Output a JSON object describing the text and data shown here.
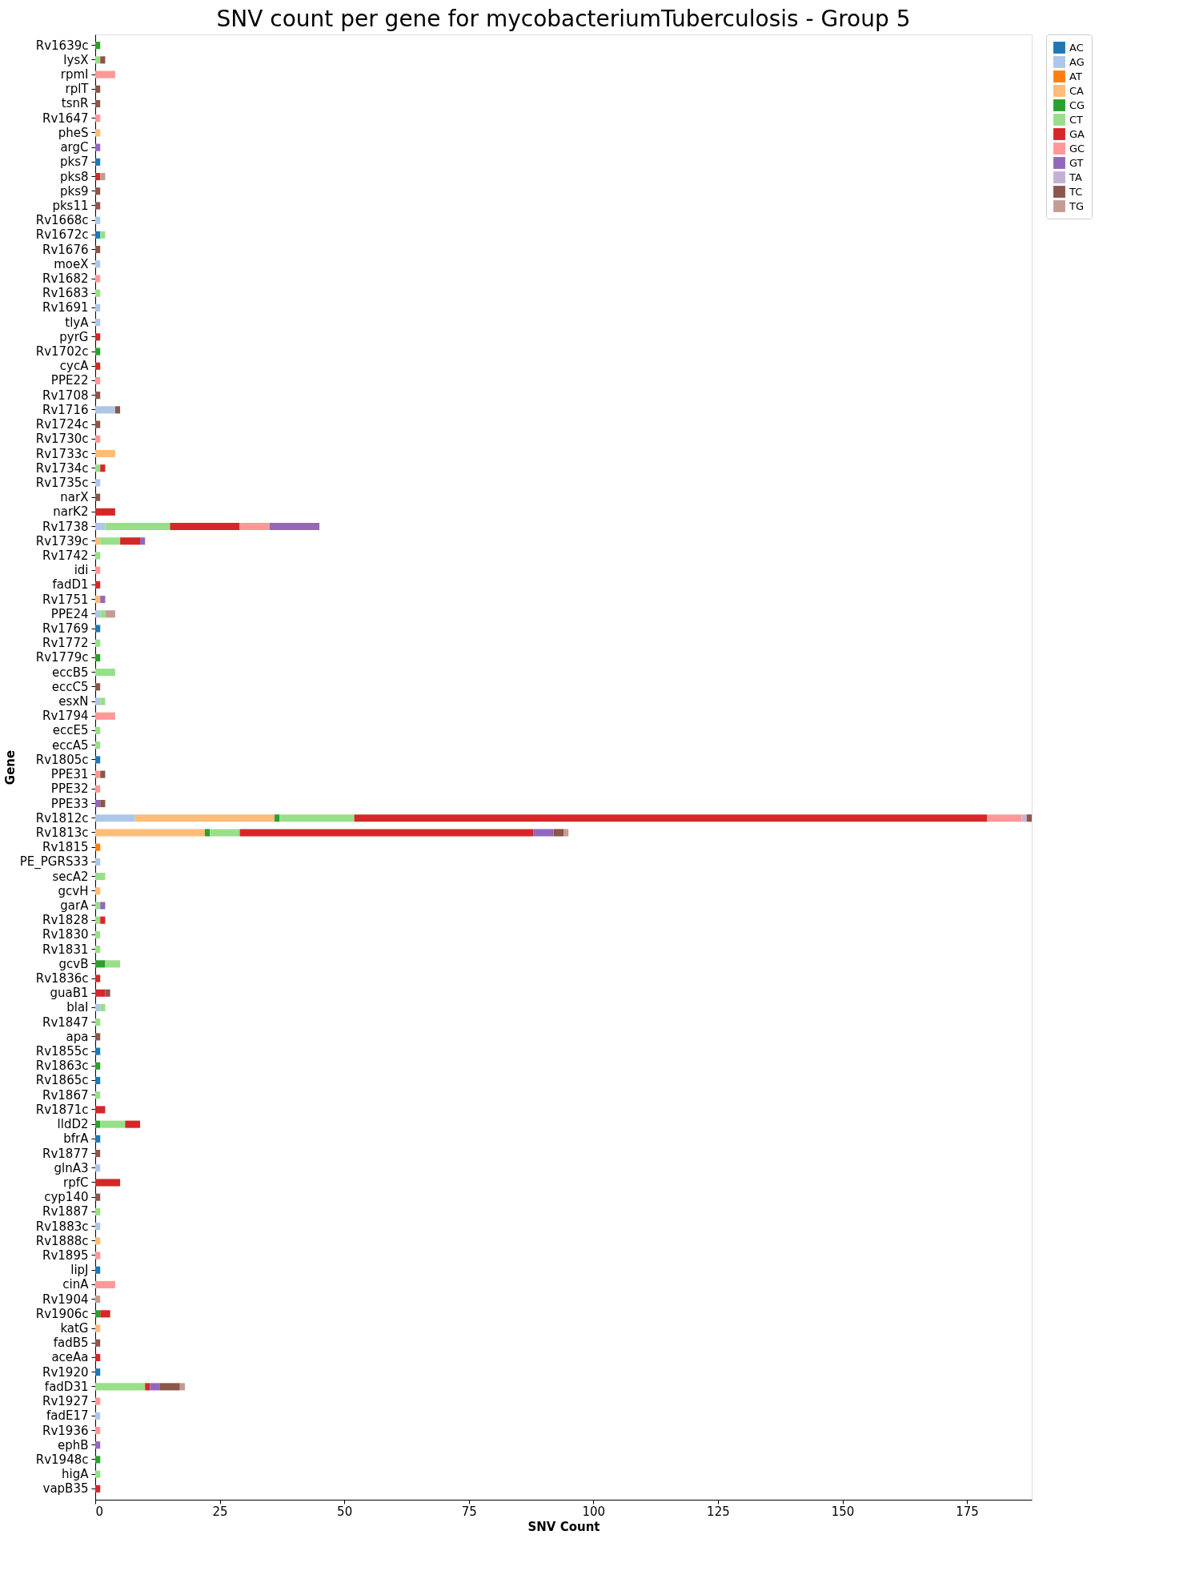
{
  "chart_data": {
    "type": "bar",
    "orientation": "horizontal",
    "stacked": true,
    "title": "SNV count per gene for mycobacteriumTuberculosis - Group 5",
    "xlabel": "SNV Count",
    "ylabel": "Gene",
    "xlim": [
      0,
      188
    ],
    "xticks": [
      0,
      25,
      50,
      75,
      100,
      125,
      150,
      175
    ],
    "grid": false,
    "legend": "top right",
    "categories": [
      "Rv1639c",
      "lysX",
      "rpmI",
      "rplT",
      "tsnR",
      "Rv1647",
      "pheS",
      "argC",
      "pks7",
      "pks8",
      "pks9",
      "pks11",
      "Rv1668c",
      "Rv1672c",
      "Rv1676",
      "moeX",
      "Rv1682",
      "Rv1683",
      "Rv1691",
      "tlyA",
      "pyrG",
      "Rv1702c",
      "cycA",
      "PPE22",
      "Rv1708",
      "Rv1716",
      "Rv1724c",
      "Rv1730c",
      "Rv1733c",
      "Rv1734c",
      "Rv1735c",
      "narX",
      "narK2",
      "Rv1738",
      "Rv1739c",
      "Rv1742",
      "idi",
      "fadD1",
      "Rv1751",
      "PPE24",
      "Rv1769",
      "Rv1772",
      "Rv1779c",
      "eccB5",
      "eccC5",
      "esxN",
      "Rv1794",
      "eccE5",
      "eccA5",
      "Rv1805c",
      "PPE31",
      "PPE32",
      "PPE33",
      "Rv1812c",
      "Rv1813c",
      "Rv1815",
      "PE_PGRS33",
      "secA2",
      "gcvH",
      "garA",
      "Rv1828",
      "Rv1830",
      "Rv1831",
      "gcvB",
      "Rv1836c",
      "guaB1",
      "blaI",
      "Rv1847",
      "apa",
      "Rv1855c",
      "Rv1863c",
      "Rv1865c",
      "Rv1867",
      "Rv1871c",
      "lldD2",
      "bfrA",
      "Rv1877",
      "glnA3",
      "rpfC",
      "cyp140",
      "Rv1887",
      "Rv1883c",
      "Rv1888c",
      "Rv1895",
      "lipJ",
      "cinA",
      "Rv1904",
      "Rv1906c",
      "katG",
      "fadB5",
      "aceAa",
      "Rv1920",
      "fadD31",
      "Rv1927",
      "fadE17",
      "Rv1936",
      "ephB",
      "Rv1948c",
      "higA",
      "vapB35"
    ],
    "series": [
      {
        "name": "AC",
        "color": "#1f77b4",
        "values": [
          null,
          null,
          null,
          null,
          null,
          null,
          null,
          null,
          1,
          null,
          null,
          null,
          null,
          1,
          null,
          null,
          null,
          null,
          null,
          null,
          null,
          null,
          null,
          null,
          null,
          null,
          null,
          null,
          null,
          null,
          null,
          null,
          null,
          null,
          null,
          null,
          null,
          null,
          null,
          null,
          1,
          null,
          null,
          null,
          null,
          null,
          null,
          null,
          null,
          1,
          null,
          null,
          null,
          null,
          null,
          null,
          null,
          null,
          null,
          null,
          null,
          null,
          null,
          null,
          null,
          null,
          null,
          null,
          null,
          1,
          null,
          1,
          null,
          null,
          null,
          1,
          null,
          null,
          null,
          null,
          null,
          null,
          null,
          null,
          1,
          null,
          null,
          null,
          null,
          null,
          null,
          1,
          null,
          null,
          null,
          null,
          null,
          null,
          null,
          null
        ]
      },
      {
        "name": "AG",
        "color": "#aec7e8",
        "values": [
          null,
          null,
          null,
          null,
          null,
          null,
          null,
          null,
          null,
          null,
          null,
          null,
          1,
          null,
          null,
          1,
          null,
          null,
          1,
          1,
          null,
          null,
          null,
          null,
          null,
          4,
          null,
          null,
          null,
          null,
          1,
          null,
          null,
          2,
          null,
          null,
          null,
          null,
          null,
          1,
          null,
          null,
          null,
          null,
          null,
          1,
          null,
          null,
          null,
          null,
          null,
          null,
          null,
          8,
          null,
          null,
          1,
          null,
          null,
          null,
          null,
          null,
          null,
          null,
          null,
          null,
          1,
          null,
          null,
          null,
          null,
          null,
          null,
          null,
          null,
          null,
          null,
          1,
          null,
          null,
          null,
          1,
          null,
          null,
          null,
          null,
          null,
          null,
          null,
          null,
          null,
          null,
          null,
          null,
          1,
          null,
          null,
          null,
          null,
          null
        ]
      },
      {
        "name": "AT",
        "color": "#ff7f0e",
        "values": [
          null,
          null,
          null,
          null,
          null,
          null,
          null,
          null,
          null,
          null,
          null,
          null,
          null,
          null,
          null,
          null,
          null,
          null,
          null,
          null,
          null,
          null,
          null,
          null,
          null,
          null,
          null,
          null,
          null,
          null,
          null,
          null,
          null,
          null,
          null,
          null,
          null,
          null,
          null,
          null,
          null,
          null,
          null,
          null,
          null,
          null,
          null,
          null,
          null,
          null,
          null,
          null,
          null,
          null,
          null,
          1,
          null,
          null,
          null,
          null,
          null,
          null,
          null,
          null,
          null,
          null,
          null,
          null,
          null,
          null,
          null,
          null,
          null,
          null,
          null,
          null,
          null,
          null,
          null,
          null,
          null,
          null,
          null,
          null,
          null,
          null,
          null,
          null,
          null,
          null,
          null,
          null,
          null,
          null,
          null,
          null,
          null,
          null,
          null,
          null
        ]
      },
      {
        "name": "CA",
        "color": "#ffbb78",
        "values": [
          null,
          null,
          null,
          null,
          null,
          null,
          1,
          null,
          null,
          null,
          null,
          null,
          null,
          null,
          null,
          null,
          null,
          null,
          null,
          null,
          null,
          null,
          null,
          null,
          null,
          null,
          null,
          null,
          4,
          null,
          null,
          null,
          null,
          null,
          1,
          null,
          null,
          null,
          1,
          null,
          null,
          null,
          null,
          null,
          null,
          null,
          null,
          null,
          null,
          null,
          null,
          null,
          null,
          28,
          22,
          null,
          null,
          null,
          1,
          null,
          null,
          null,
          null,
          null,
          null,
          null,
          null,
          null,
          null,
          null,
          null,
          null,
          null,
          null,
          null,
          null,
          null,
          null,
          null,
          null,
          null,
          null,
          1,
          null,
          null,
          null,
          null,
          null,
          1,
          null,
          null,
          null,
          null,
          null,
          null,
          null,
          null,
          null,
          null,
          null
        ]
      },
      {
        "name": "CG",
        "color": "#2ca02c",
        "values": [
          1,
          null,
          null,
          null,
          null,
          null,
          null,
          null,
          null,
          null,
          null,
          null,
          null,
          null,
          null,
          null,
          null,
          null,
          null,
          null,
          null,
          1,
          null,
          null,
          null,
          null,
          null,
          null,
          null,
          null,
          null,
          null,
          null,
          null,
          null,
          null,
          null,
          null,
          null,
          null,
          null,
          null,
          1,
          null,
          null,
          null,
          null,
          null,
          null,
          null,
          null,
          null,
          null,
          1,
          1,
          null,
          null,
          null,
          null,
          null,
          null,
          null,
          null,
          2,
          null,
          null,
          null,
          null,
          null,
          null,
          1,
          null,
          null,
          null,
          1,
          null,
          null,
          null,
          null,
          null,
          null,
          null,
          null,
          null,
          null,
          null,
          null,
          1,
          null,
          null,
          null,
          null,
          null,
          null,
          null,
          null,
          null,
          1,
          null,
          null
        ]
      },
      {
        "name": "CT",
        "color": "#98df8a",
        "values": [
          null,
          1,
          null,
          null,
          null,
          null,
          null,
          null,
          null,
          null,
          null,
          null,
          null,
          1,
          null,
          null,
          null,
          1,
          null,
          null,
          null,
          null,
          null,
          null,
          null,
          null,
          null,
          null,
          null,
          1,
          null,
          null,
          null,
          13,
          4,
          1,
          null,
          null,
          null,
          1,
          null,
          1,
          null,
          4,
          null,
          1,
          null,
          1,
          1,
          null,
          null,
          null,
          null,
          15,
          6,
          null,
          null,
          2,
          null,
          1,
          1,
          1,
          1,
          3,
          null,
          null,
          1,
          1,
          null,
          null,
          null,
          null,
          1,
          null,
          5,
          null,
          null,
          null,
          null,
          null,
          1,
          null,
          null,
          null,
          null,
          null,
          null,
          null,
          null,
          null,
          null,
          null,
          10,
          null,
          null,
          null,
          null,
          null,
          1,
          null
        ]
      },
      {
        "name": "GA",
        "color": "#d62728",
        "values": [
          null,
          null,
          null,
          null,
          null,
          null,
          null,
          null,
          null,
          1,
          null,
          null,
          null,
          null,
          null,
          null,
          null,
          null,
          null,
          null,
          1,
          null,
          1,
          null,
          null,
          null,
          null,
          null,
          null,
          1,
          null,
          null,
          4,
          14,
          4,
          null,
          null,
          1,
          null,
          null,
          null,
          null,
          null,
          null,
          null,
          null,
          null,
          null,
          null,
          null,
          null,
          null,
          null,
          127,
          59,
          null,
          null,
          null,
          null,
          null,
          1,
          null,
          null,
          null,
          1,
          2,
          null,
          null,
          null,
          null,
          null,
          null,
          null,
          2,
          3,
          null,
          null,
          null,
          5,
          null,
          null,
          null,
          null,
          null,
          null,
          null,
          null,
          2,
          null,
          null,
          1,
          null,
          1,
          null,
          null,
          null,
          null,
          null,
          null,
          1
        ]
      },
      {
        "name": "GC",
        "color": "#ff9896",
        "values": [
          null,
          null,
          4,
          null,
          null,
          1,
          null,
          null,
          null,
          null,
          null,
          null,
          null,
          null,
          null,
          null,
          1,
          null,
          null,
          null,
          null,
          null,
          null,
          1,
          null,
          null,
          null,
          1,
          null,
          null,
          null,
          null,
          null,
          6,
          null,
          null,
          1,
          null,
          null,
          null,
          null,
          null,
          null,
          null,
          null,
          null,
          4,
          null,
          null,
          null,
          1,
          1,
          null,
          7,
          null,
          null,
          null,
          null,
          null,
          null,
          null,
          null,
          null,
          null,
          null,
          null,
          null,
          null,
          null,
          null,
          null,
          null,
          null,
          null,
          null,
          null,
          null,
          null,
          null,
          null,
          null,
          null,
          null,
          1,
          null,
          4,
          null,
          null,
          null,
          null,
          null,
          null,
          null,
          1,
          null,
          1,
          null,
          null,
          null,
          null
        ]
      },
      {
        "name": "GT",
        "color": "#9467bd",
        "values": [
          null,
          null,
          null,
          null,
          null,
          null,
          null,
          1,
          null,
          null,
          null,
          null,
          null,
          null,
          null,
          null,
          null,
          null,
          null,
          null,
          null,
          null,
          null,
          null,
          null,
          null,
          null,
          null,
          null,
          null,
          null,
          null,
          null,
          10,
          1,
          null,
          null,
          null,
          1,
          null,
          null,
          null,
          null,
          null,
          null,
          null,
          null,
          null,
          null,
          null,
          null,
          null,
          1,
          null,
          4,
          null,
          null,
          null,
          null,
          1,
          null,
          null,
          null,
          null,
          null,
          null,
          null,
          null,
          null,
          null,
          null,
          null,
          null,
          null,
          null,
          null,
          null,
          null,
          null,
          null,
          null,
          null,
          null,
          null,
          null,
          null,
          null,
          null,
          null,
          null,
          null,
          null,
          2,
          null,
          null,
          null,
          1,
          null,
          null,
          null
        ]
      },
      {
        "name": "TA",
        "color": "#c5b0d5",
        "values": [
          null,
          null,
          null,
          null,
          null,
          null,
          null,
          null,
          null,
          null,
          null,
          null,
          null,
          null,
          null,
          null,
          null,
          null,
          null,
          null,
          null,
          null,
          null,
          null,
          null,
          null,
          null,
          null,
          null,
          null,
          null,
          null,
          null,
          null,
          null,
          null,
          null,
          null,
          null,
          null,
          null,
          null,
          null,
          null,
          null,
          null,
          null,
          null,
          null,
          null,
          null,
          null,
          null,
          1,
          null,
          null,
          null,
          null,
          null,
          null,
          null,
          null,
          null,
          null,
          null,
          null,
          null,
          null,
          null,
          null,
          null,
          null,
          null,
          null,
          null,
          null,
          null,
          null,
          null,
          null,
          null,
          null,
          null,
          null,
          null,
          null,
          null,
          null,
          null,
          null,
          null,
          null,
          null,
          null,
          null,
          null,
          null,
          null,
          null,
          null
        ]
      },
      {
        "name": "TC",
        "color": "#8c564b",
        "values": [
          null,
          1,
          null,
          1,
          1,
          null,
          null,
          null,
          null,
          null,
          1,
          1,
          null,
          null,
          1,
          null,
          null,
          null,
          null,
          null,
          null,
          null,
          null,
          null,
          1,
          1,
          1,
          null,
          null,
          null,
          null,
          1,
          null,
          null,
          null,
          null,
          null,
          null,
          null,
          null,
          null,
          null,
          null,
          null,
          1,
          null,
          null,
          null,
          null,
          null,
          1,
          null,
          1,
          1,
          2,
          null,
          null,
          null,
          null,
          null,
          null,
          null,
          null,
          null,
          null,
          1,
          null,
          null,
          1,
          null,
          null,
          null,
          null,
          null,
          null,
          null,
          1,
          null,
          null,
          1,
          null,
          null,
          null,
          null,
          null,
          null,
          null,
          null,
          null,
          1,
          null,
          null,
          4,
          null,
          null,
          null,
          null,
          null,
          null,
          null
        ]
      },
      {
        "name": "TG",
        "color": "#c49c94",
        "values": [
          null,
          null,
          null,
          null,
          null,
          null,
          null,
          null,
          null,
          1,
          null,
          null,
          null,
          null,
          null,
          null,
          null,
          null,
          null,
          null,
          null,
          null,
          null,
          null,
          null,
          null,
          null,
          null,
          null,
          null,
          null,
          null,
          null,
          null,
          null,
          null,
          null,
          null,
          null,
          2,
          null,
          null,
          null,
          null,
          null,
          null,
          null,
          null,
          null,
          null,
          null,
          null,
          null,
          null,
          1,
          null,
          null,
          null,
          null,
          null,
          null,
          null,
          null,
          null,
          null,
          null,
          null,
          null,
          null,
          null,
          null,
          null,
          null,
          null,
          null,
          null,
          null,
          null,
          null,
          null,
          null,
          null,
          null,
          null,
          null,
          null,
          1,
          null,
          null,
          null,
          null,
          null,
          1,
          null,
          null,
          null,
          null,
          null,
          null,
          null
        ]
      }
    ]
  }
}
